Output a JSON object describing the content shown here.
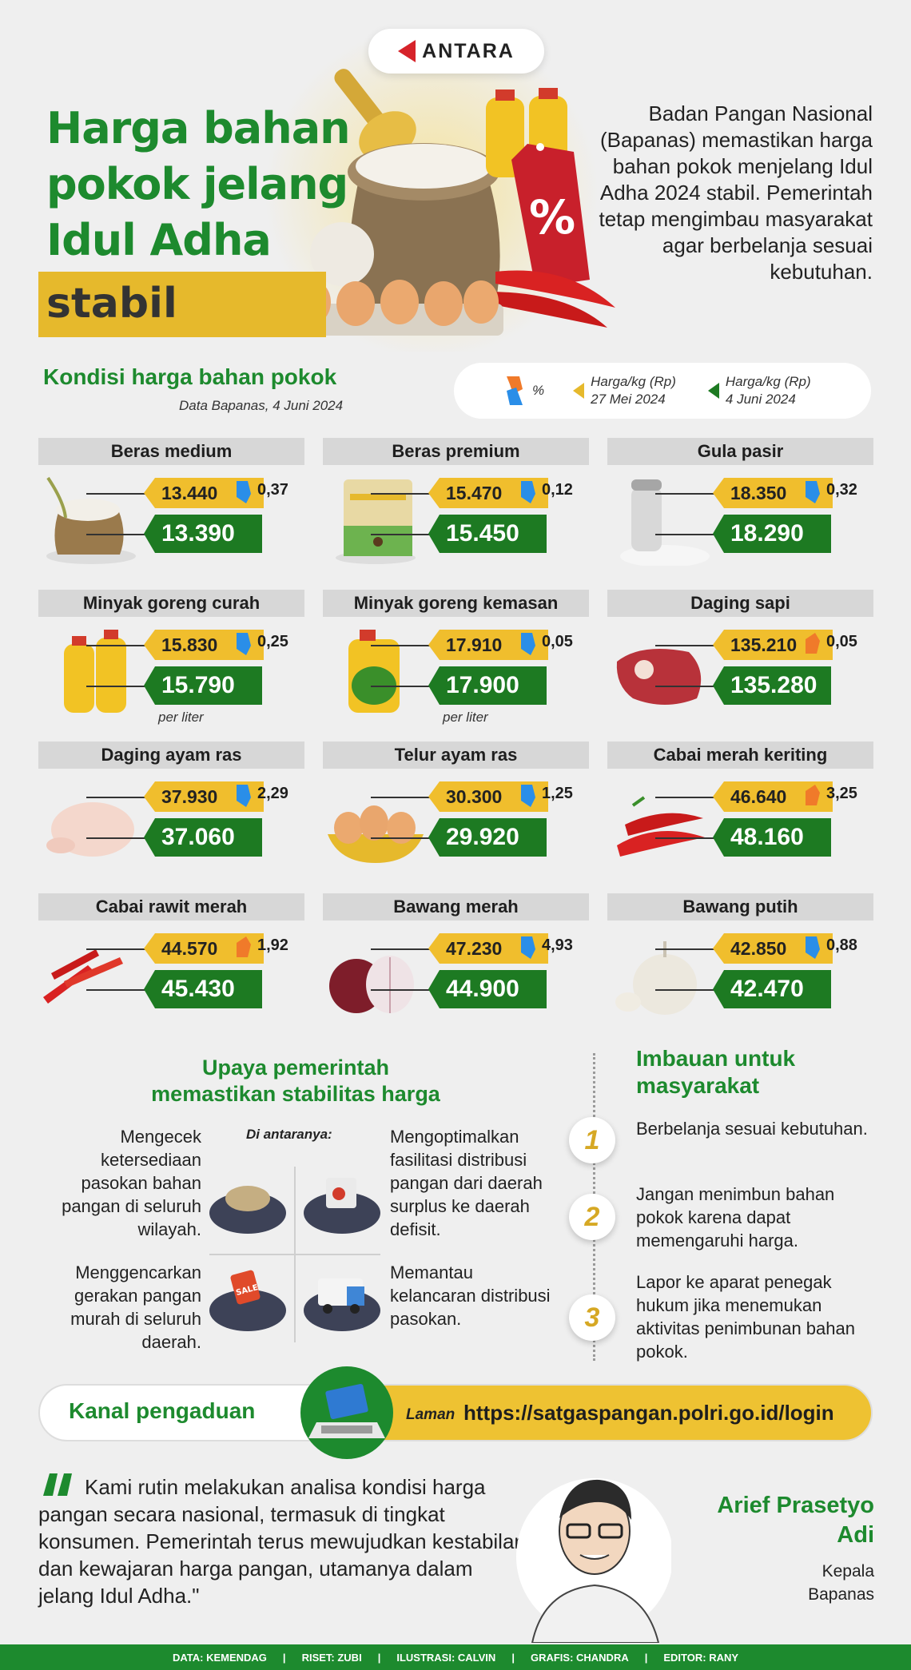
{
  "brand": {
    "name": "ANTARA"
  },
  "header": {
    "title_line1": "Harga bahan",
    "title_line2": "pokok jelang",
    "title_line3": "Idul Adha",
    "highlight": "stabil",
    "intro": "Badan Pangan Nasional (Bapanas) memastikan harga bahan pokok menjelang Idul Adha 2024 stabil. Pemerintah tetap mengimbau masyarakat agar berbelanja sesuai kebutuhan."
  },
  "kondisi": {
    "title": "Kondisi harga bahan pokok",
    "source": "Data Bapanas, 4 Juni 2024",
    "legend": {
      "pct": "%",
      "old_line1": "Harga/kg (Rp)",
      "old_line2": "27 Mei 2024",
      "new_line1": "Harga/kg (Rp)",
      "new_line2": "4 Juni 2024"
    }
  },
  "colors": {
    "green": "#1d8a2e",
    "yellow": "#f0be2d",
    "down": "#2a8ee8",
    "up": "#f07a2a"
  },
  "items": [
    {
      "name": "Beras medium",
      "old": "13.440",
      "new": "13.390",
      "pct": "0,37",
      "dir": "down",
      "unit": ""
    },
    {
      "name": "Beras premium",
      "old": "15.470",
      "new": "15.450",
      "pct": "0,12",
      "dir": "down",
      "unit": ""
    },
    {
      "name": "Gula pasir",
      "old": "18.350",
      "new": "18.290",
      "pct": "0,32",
      "dir": "down",
      "unit": ""
    },
    {
      "name": "Minyak goreng curah",
      "old": "15.830",
      "new": "15.790",
      "pct": "0,25",
      "dir": "down",
      "unit": "per liter"
    },
    {
      "name": "Minyak goreng kemasan",
      "old": "17.910",
      "new": "17.900",
      "pct": "0,05",
      "dir": "down",
      "unit": "per liter"
    },
    {
      "name": "Daging sapi",
      "old": "135.210",
      "new": "135.280",
      "pct": "0,05",
      "dir": "up",
      "unit": ""
    },
    {
      "name": "Daging ayam ras",
      "old": "37.930",
      "new": "37.060",
      "pct": "2,29",
      "dir": "down",
      "unit": ""
    },
    {
      "name": "Telur ayam ras",
      "old": "30.300",
      "new": "29.920",
      "pct": "1,25",
      "dir": "down",
      "unit": ""
    },
    {
      "name": "Cabai merah keriting",
      "old": "46.640",
      "new": "48.160",
      "pct": "3,25",
      "dir": "up",
      "unit": ""
    },
    {
      "name": "Cabai rawit merah",
      "old": "44.570",
      "new": "45.430",
      "pct": "1,92",
      "dir": "up",
      "unit": ""
    },
    {
      "name": "Bawang merah",
      "old": "47.230",
      "new": "44.900",
      "pct": "4,93",
      "dir": "down",
      "unit": ""
    },
    {
      "name": "Bawang putih",
      "old": "42.850",
      "new": "42.470",
      "pct": "0,88",
      "dir": "down",
      "unit": ""
    }
  ],
  "upaya": {
    "title_line1": "Upaya pemerintah",
    "title_line2": "memastikan stabilitas harga",
    "di_antaranya": "Di antaranya:",
    "p1": "Mengecek ketersediaan pasokan bahan pangan di seluruh wilayah.",
    "p2": "Mengoptimalkan fasilitasi distribusi pangan dari daerah surplus ke daerah defisit.",
    "p3": "Menggencarkan gerakan pangan murah di seluruh daerah.",
    "p4": "Memantau kelancaran distribusi pasokan."
  },
  "imbauan": {
    "title": "Imbauan untuk masyarakat",
    "items": [
      {
        "num": "1",
        "text": "Berbelanja sesuai kebutuhan."
      },
      {
        "num": "2",
        "text": "Jangan menimbun bahan pokok karena dapat memengaruhi harga."
      },
      {
        "num": "3",
        "text": "Lapor ke aparat penegak hukum jika menemukan aktivitas penimbunan bahan pokok."
      }
    ]
  },
  "kanal": {
    "label": "Kanal pengaduan",
    "laman": "Laman",
    "url": "https://satgaspangan.polri.go.id/login"
  },
  "quote": {
    "text": "Kami rutin melakukan analisa kondisi harga pangan secara nasional, termasuk di tingkat konsumen. Pemerintah terus mewujudkan kestabilan dan kewajaran harga pangan, utamanya dalam jelang Idul Adha.\"",
    "name": "Arief Prasetyo Adi",
    "role": "Kepala Bapanas"
  },
  "footer": {
    "data": "DATA: KEMENDAG",
    "riset": "RISET: ZUBI",
    "ilustrasi": "ILUSTRASI: CALVIN",
    "grafis": "GRAFIS: CHANDRA",
    "editor": "EDITOR: RANY",
    "sep": "|"
  }
}
